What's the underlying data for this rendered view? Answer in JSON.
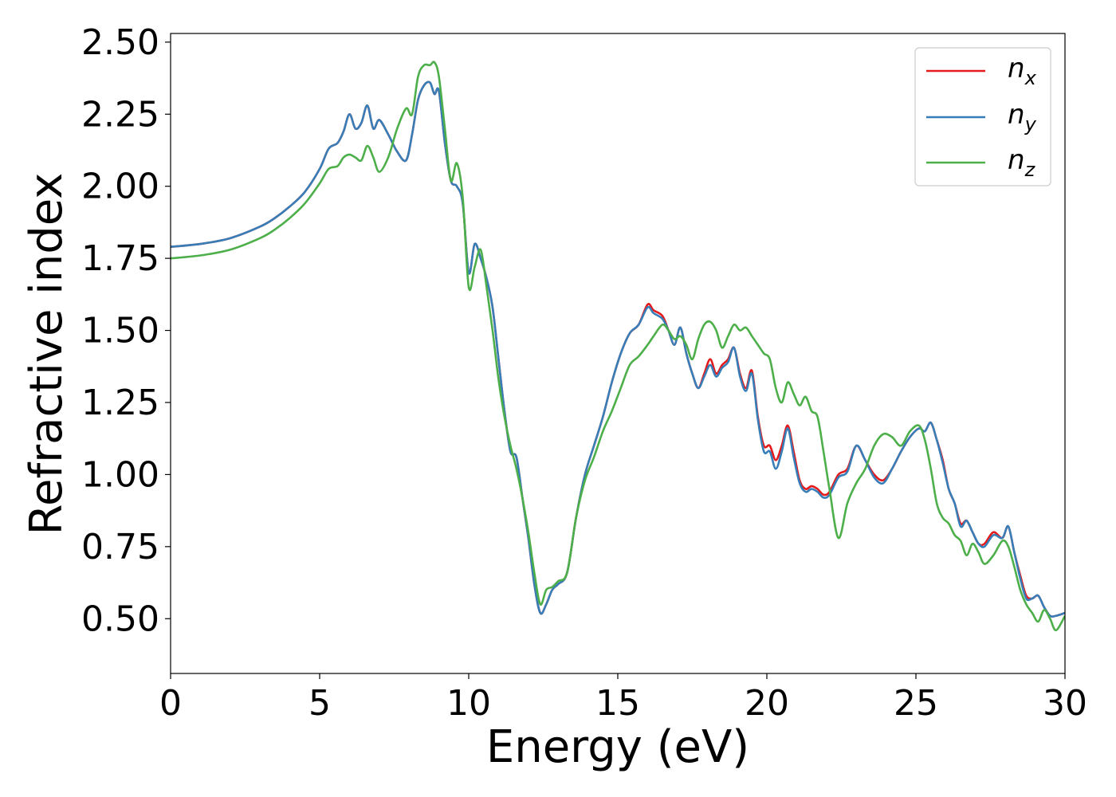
{
  "chart_data": {
    "type": "line",
    "xlabel": "Energy (eV)",
    "ylabel": "Refractive index",
    "xlim": [
      0,
      30
    ],
    "ylim": [
      0.31,
      2.53
    ],
    "xticks": [
      0,
      5,
      10,
      15,
      20,
      25,
      30
    ],
    "xtick_labels": [
      "0",
      "5",
      "10",
      "15",
      "20",
      "25",
      "30"
    ],
    "yticks": [
      0.5,
      0.75,
      1.0,
      1.25,
      1.5,
      1.75,
      2.0,
      2.25,
      2.5
    ],
    "ytick_labels": [
      "0.50",
      "0.75",
      "1.00",
      "1.25",
      "1.50",
      "1.75",
      "2.00",
      "2.25",
      "2.50"
    ],
    "grid": false,
    "legend_position": "top-right",
    "series": [
      {
        "name": "n",
        "subscript": "x",
        "color": "#e41a1c",
        "x": [
          0,
          1,
          2,
          3,
          3.5,
          4,
          4.5,
          5,
          5.3,
          5.6,
          5.8,
          6.0,
          6.2,
          6.4,
          6.6,
          6.8,
          7.0,
          7.3,
          7.6,
          7.9,
          8.1,
          8.3,
          8.5,
          8.7,
          8.85,
          9.0,
          9.2,
          9.4,
          9.6,
          9.8,
          10.0,
          10.2,
          10.4,
          10.6,
          10.8,
          11.0,
          11.2,
          11.4,
          11.6,
          11.8,
          12.0,
          12.2,
          12.4,
          12.6,
          12.8,
          13.0,
          13.3,
          13.6,
          13.9,
          14.2,
          14.5,
          14.8,
          15.1,
          15.4,
          15.7,
          16.0,
          16.2,
          16.5,
          16.7,
          16.9,
          17.1,
          17.3,
          17.5,
          17.7,
          17.9,
          18.1,
          18.3,
          18.5,
          18.7,
          18.9,
          19.1,
          19.3,
          19.5,
          19.7,
          19.9,
          20.1,
          20.3,
          20.5,
          20.7,
          20.9,
          21.1,
          21.3,
          21.5,
          21.7,
          21.9,
          22.1,
          22.4,
          22.7,
          23.0,
          23.3,
          23.6,
          23.9,
          24.2,
          24.5,
          24.8,
          25.1,
          25.3,
          25.5,
          25.7,
          25.9,
          26.1,
          26.3,
          26.5,
          26.7,
          26.9,
          27.1,
          27.3,
          27.6,
          27.9,
          28.1,
          28.3,
          28.5,
          28.7,
          28.9,
          29.1,
          29.3,
          29.5,
          29.7,
          30
        ],
        "y": [
          1.79,
          1.8,
          1.82,
          1.86,
          1.89,
          1.93,
          1.98,
          2.06,
          2.13,
          2.15,
          2.19,
          2.25,
          2.2,
          2.22,
          2.28,
          2.2,
          2.23,
          2.18,
          2.12,
          2.09,
          2.18,
          2.3,
          2.35,
          2.36,
          2.32,
          2.33,
          2.15,
          2.02,
          2.0,
          1.94,
          1.7,
          1.8,
          1.75,
          1.68,
          1.58,
          1.4,
          1.22,
          1.08,
          1.06,
          0.92,
          0.78,
          0.62,
          0.52,
          0.55,
          0.6,
          0.62,
          0.66,
          0.85,
          1.0,
          1.1,
          1.2,
          1.32,
          1.42,
          1.49,
          1.52,
          1.59,
          1.57,
          1.55,
          1.5,
          1.45,
          1.51,
          1.42,
          1.35,
          1.3,
          1.35,
          1.4,
          1.35,
          1.38,
          1.4,
          1.44,
          1.35,
          1.3,
          1.36,
          1.2,
          1.1,
          1.1,
          1.05,
          1.1,
          1.17,
          1.08,
          0.98,
          0.95,
          0.96,
          0.95,
          0.93,
          0.94,
          1.0,
          1.02,
          1.1,
          1.05,
          1.0,
          0.98,
          1.02,
          1.08,
          1.13,
          1.16,
          1.15,
          1.18,
          1.12,
          1.05,
          0.95,
          0.9,
          0.83,
          0.84,
          0.8,
          0.76,
          0.76,
          0.8,
          0.78,
          0.82,
          0.73,
          0.65,
          0.58,
          0.57,
          0.58,
          0.54,
          0.51,
          0.51,
          0.52
        ]
      },
      {
        "name": "n",
        "subscript": "y",
        "color": "#377eb8",
        "x": [
          0,
          1,
          2,
          3,
          3.5,
          4,
          4.5,
          5,
          5.3,
          5.6,
          5.8,
          6.0,
          6.2,
          6.4,
          6.6,
          6.8,
          7.0,
          7.3,
          7.6,
          7.9,
          8.1,
          8.3,
          8.5,
          8.7,
          8.85,
          9.0,
          9.2,
          9.4,
          9.6,
          9.8,
          10.0,
          10.2,
          10.4,
          10.6,
          10.8,
          11.0,
          11.2,
          11.4,
          11.6,
          11.8,
          12.0,
          12.2,
          12.4,
          12.6,
          12.8,
          13.0,
          13.3,
          13.6,
          13.9,
          14.2,
          14.5,
          14.8,
          15.1,
          15.4,
          15.7,
          16.0,
          16.2,
          16.5,
          16.7,
          16.9,
          17.1,
          17.3,
          17.5,
          17.7,
          17.9,
          18.1,
          18.3,
          18.5,
          18.7,
          18.9,
          19.1,
          19.3,
          19.5,
          19.7,
          19.9,
          20.1,
          20.3,
          20.5,
          20.7,
          20.9,
          21.1,
          21.3,
          21.5,
          21.7,
          21.9,
          22.1,
          22.4,
          22.7,
          23.0,
          23.3,
          23.6,
          23.9,
          24.2,
          24.5,
          24.8,
          25.1,
          25.3,
          25.5,
          25.7,
          25.9,
          26.1,
          26.3,
          26.5,
          26.7,
          26.9,
          27.1,
          27.3,
          27.6,
          27.9,
          28.1,
          28.3,
          28.5,
          28.7,
          28.9,
          29.1,
          29.3,
          29.5,
          29.7,
          30
        ],
        "y": [
          1.79,
          1.8,
          1.82,
          1.86,
          1.89,
          1.93,
          1.98,
          2.06,
          2.13,
          2.15,
          2.19,
          2.25,
          2.2,
          2.22,
          2.28,
          2.2,
          2.23,
          2.18,
          2.12,
          2.09,
          2.18,
          2.3,
          2.35,
          2.36,
          2.32,
          2.33,
          2.15,
          2.02,
          2.0,
          1.94,
          1.7,
          1.8,
          1.75,
          1.68,
          1.58,
          1.4,
          1.22,
          1.08,
          1.06,
          0.92,
          0.78,
          0.62,
          0.52,
          0.55,
          0.6,
          0.62,
          0.66,
          0.85,
          1.0,
          1.1,
          1.2,
          1.32,
          1.42,
          1.49,
          1.52,
          1.58,
          1.56,
          1.54,
          1.5,
          1.45,
          1.51,
          1.42,
          1.35,
          1.3,
          1.34,
          1.38,
          1.34,
          1.37,
          1.39,
          1.44,
          1.34,
          1.29,
          1.35,
          1.19,
          1.08,
          1.08,
          1.02,
          1.08,
          1.16,
          1.06,
          0.97,
          0.94,
          0.95,
          0.94,
          0.92,
          0.93,
          0.99,
          1.01,
          1.1,
          1.05,
          0.99,
          0.97,
          1.02,
          1.08,
          1.13,
          1.16,
          1.15,
          1.18,
          1.12,
          1.04,
          0.95,
          0.9,
          0.82,
          0.84,
          0.8,
          0.76,
          0.75,
          0.79,
          0.78,
          0.82,
          0.73,
          0.64,
          0.57,
          0.57,
          0.58,
          0.54,
          0.51,
          0.51,
          0.52
        ]
      },
      {
        "name": "n",
        "subscript": "z",
        "color": "#4daf4a",
        "x": [
          0,
          1,
          2,
          3,
          3.5,
          4,
          4.5,
          5,
          5.3,
          5.6,
          5.8,
          6.0,
          6.2,
          6.4,
          6.6,
          6.8,
          7.0,
          7.3,
          7.6,
          7.9,
          8.1,
          8.3,
          8.5,
          8.7,
          8.85,
          9.0,
          9.2,
          9.4,
          9.6,
          9.8,
          10.0,
          10.2,
          10.4,
          10.6,
          10.8,
          11.0,
          11.2,
          11.4,
          11.6,
          11.8,
          12.0,
          12.2,
          12.4,
          12.6,
          12.8,
          13.0,
          13.3,
          13.6,
          13.9,
          14.2,
          14.5,
          14.8,
          15.1,
          15.4,
          15.7,
          16.0,
          16.2,
          16.5,
          16.7,
          16.9,
          17.1,
          17.3,
          17.5,
          17.7,
          17.9,
          18.1,
          18.3,
          18.5,
          18.7,
          18.9,
          19.1,
          19.3,
          19.5,
          19.7,
          19.9,
          20.1,
          20.3,
          20.5,
          20.7,
          20.9,
          21.1,
          21.3,
          21.5,
          21.7,
          21.9,
          22.1,
          22.4,
          22.7,
          23.0,
          23.3,
          23.6,
          23.9,
          24.2,
          24.5,
          24.8,
          25.1,
          25.3,
          25.5,
          25.7,
          25.9,
          26.1,
          26.3,
          26.5,
          26.7,
          26.9,
          27.1,
          27.3,
          27.6,
          27.9,
          28.1,
          28.3,
          28.5,
          28.7,
          28.9,
          29.1,
          29.3,
          29.5,
          29.7,
          30
        ],
        "y": [
          1.75,
          1.76,
          1.78,
          1.82,
          1.85,
          1.89,
          1.94,
          2.01,
          2.06,
          2.07,
          2.1,
          2.11,
          2.1,
          2.09,
          2.14,
          2.1,
          2.05,
          2.1,
          2.2,
          2.27,
          2.25,
          2.38,
          2.42,
          2.42,
          2.43,
          2.38,
          2.2,
          2.02,
          2.08,
          1.96,
          1.65,
          1.72,
          1.78,
          1.65,
          1.5,
          1.33,
          1.2,
          1.1,
          1.02,
          0.92,
          0.8,
          0.66,
          0.55,
          0.6,
          0.61,
          0.63,
          0.66,
          0.85,
          0.98,
          1.06,
          1.15,
          1.22,
          1.3,
          1.38,
          1.41,
          1.45,
          1.48,
          1.52,
          1.5,
          1.47,
          1.48,
          1.45,
          1.4,
          1.47,
          1.52,
          1.53,
          1.5,
          1.44,
          1.48,
          1.52,
          1.5,
          1.51,
          1.48,
          1.45,
          1.42,
          1.4,
          1.3,
          1.25,
          1.32,
          1.28,
          1.24,
          1.27,
          1.22,
          1.2,
          1.08,
          0.95,
          0.78,
          0.9,
          0.97,
          1.02,
          1.1,
          1.14,
          1.13,
          1.1,
          1.15,
          1.17,
          1.12,
          1.02,
          0.9,
          0.85,
          0.83,
          0.79,
          0.77,
          0.72,
          0.76,
          0.73,
          0.69,
          0.72,
          0.77,
          0.75,
          0.68,
          0.6,
          0.55,
          0.52,
          0.49,
          0.53,
          0.5,
          0.46,
          0.51
        ]
      }
    ]
  }
}
